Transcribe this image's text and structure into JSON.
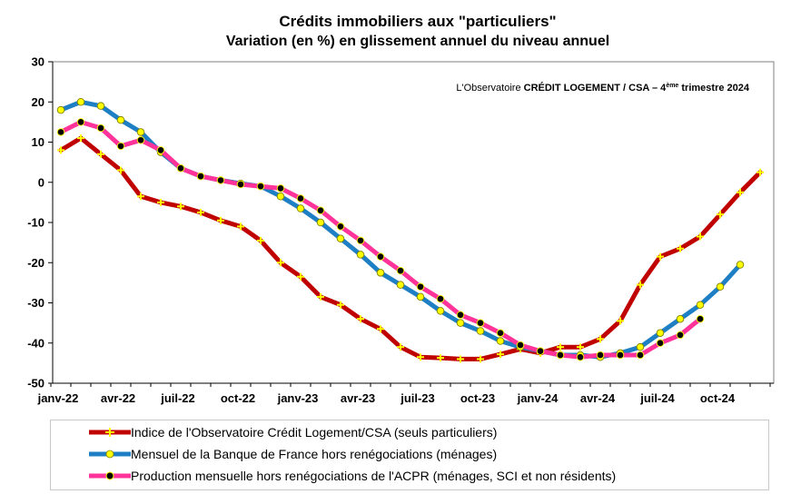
{
  "chart_data": {
    "type": "line",
    "title": "Crédits immobiliers aux \"particuliers\"",
    "subtitle": "Variation (en %) en glissement annuel du niveau annuel",
    "annotation": {
      "prefix": "L'Observatoire ",
      "brand": "CRÉDIT LOGEMENT / CSA",
      "dash": " – 4",
      "sup": "ème",
      "suffix": " trimestre 2024"
    },
    "x_ticks": [
      "janv-22",
      "avr-22",
      "juil-22",
      "oct-22",
      "janv-23",
      "avr-23",
      "juil-23",
      "oct-23",
      "janv-24",
      "avr-24",
      "juil-24",
      "oct-24"
    ],
    "y_ticks": [
      "30",
      "20",
      "10",
      "0",
      "-10",
      "-20",
      "-30",
      "-40",
      "-50"
    ],
    "ylim": [
      -50,
      30
    ],
    "grid": false,
    "series": [
      {
        "name": "Indice de l'Observatoire Crédit Logement/CSA (seuls particuliers)",
        "line_color": "#c00000",
        "marker_color": "#ffff00",
        "marker_style": "plus",
        "start_month_index": 0,
        "values": [
          8,
          11,
          7,
          3,
          -3.5,
          -5,
          -6,
          -7.5,
          -9.5,
          -11,
          -14.5,
          -20,
          -23.5,
          -28.5,
          -30.5,
          -34,
          -36.5,
          -41,
          -43.5,
          -43.7,
          -44,
          -44,
          -42.8,
          -41.5,
          -42.5,
          -41,
          -41,
          -39,
          -34.5,
          -25.5,
          -18.5,
          -16.5,
          -13.5,
          -8,
          -2.5,
          2.5
        ]
      },
      {
        "name": "Mensuel de la Banque de France hors renégociations (ménages)",
        "line_color": "#1f7fc4",
        "marker_color": "#ffff00",
        "marker_style": "circle",
        "start_month_index": 0,
        "values": [
          18,
          20,
          19,
          15.5,
          12.5,
          7.5,
          3.5,
          1.5,
          0.5,
          -0.3,
          -1,
          -3.5,
          -6.5,
          -10,
          -14,
          -18,
          -22.5,
          -25.5,
          -28.5,
          -32,
          -35,
          -37,
          -39.5,
          -41,
          -42,
          -43,
          -43,
          -43.5,
          -42.5,
          -41,
          -37.5,
          -34,
          -30.5,
          -26,
          -20.5
        ]
      },
      {
        "name": "Production mensuelle hors renégociations de l'ACPR (ménages, SCI et non résidents)",
        "line_color": "#ff3399",
        "marker_color": "#000000",
        "marker_style": "circle",
        "start_month_index": 0,
        "values": [
          12.5,
          15,
          13.5,
          9,
          10.5,
          8,
          3.5,
          1.5,
          0.5,
          -0.5,
          -1,
          -1.5,
          -4,
          -7,
          -11,
          -14.5,
          -18.5,
          -22,
          -26,
          -29,
          -33,
          -35,
          -37.5,
          -40.5,
          -42,
          -43,
          -43.5,
          -43,
          -43,
          -43,
          -40,
          -38,
          -34
        ]
      }
    ]
  }
}
